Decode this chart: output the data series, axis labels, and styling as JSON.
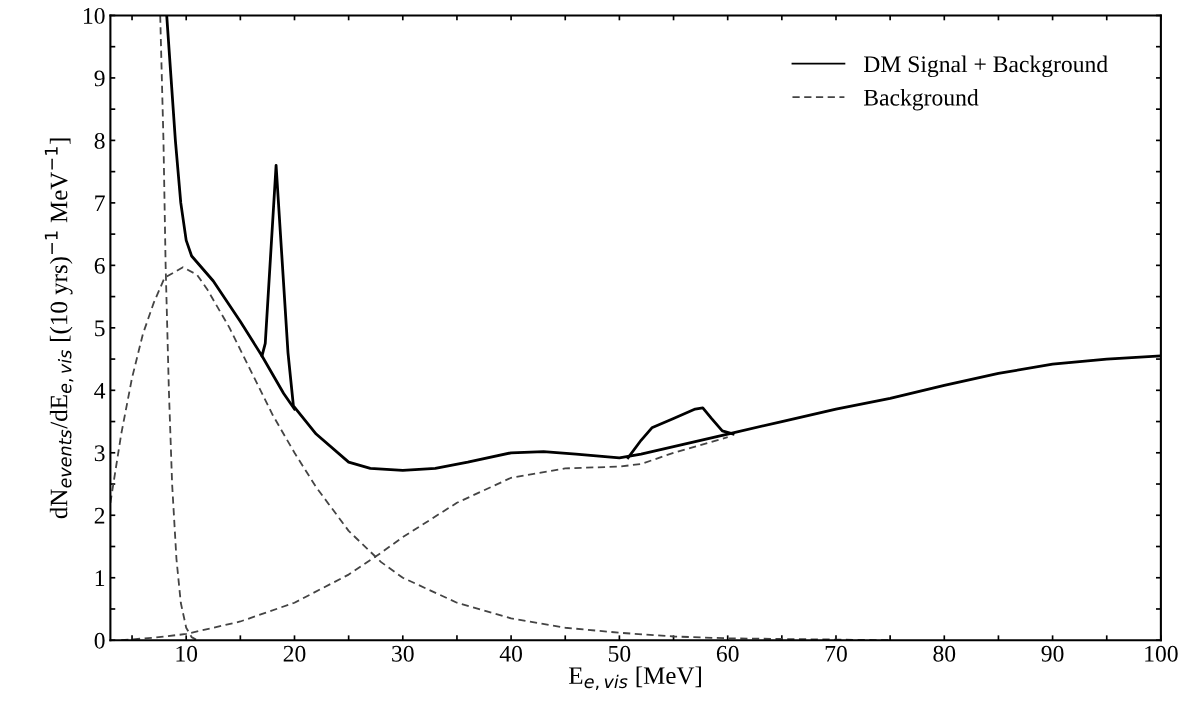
{
  "chart_data": {
    "type": "line",
    "xlabel": "E$_{e,vis}$ [MeV]",
    "ylabel": "dN$_{events}$/dE$_{e,vis}$ [(10 yrs)$^{−1}$ MeV$^{−1}$]",
    "xlim": [
      3,
      100
    ],
    "ylim": [
      0,
      10
    ],
    "xticks": [
      {
        "value": 5,
        "label": null
      },
      10,
      {
        "value": 15,
        "label": null
      },
      20,
      {
        "value": 25,
        "label": null
      },
      30,
      {
        "value": 35,
        "label": null
      },
      40,
      {
        "value": 45,
        "label": null
      },
      50,
      {
        "value": 55,
        "label": null
      },
      60,
      {
        "value": 65,
        "label": null
      },
      70,
      {
        "value": 75,
        "label": null
      },
      80,
      {
        "value": 85,
        "label": null
      },
      90,
      {
        "value": 95,
        "label": null
      },
      100
    ],
    "yticks": [
      0,
      {
        "value": 0.5,
        "label": null
      },
      1,
      {
        "value": 1.5,
        "label": null
      },
      2,
      {
        "value": 2.5,
        "label": null
      },
      3,
      {
        "value": 3.5,
        "label": null
      },
      4,
      {
        "value": 4.5,
        "label": null
      },
      5,
      {
        "value": 5.5,
        "label": null
      },
      6,
      {
        "value": 6.5,
        "label": null
      },
      7,
      {
        "value": 7.5,
        "label": null
      },
      8,
      {
        "value": 8.5,
        "label": null
      },
      9,
      {
        "value": 9.5,
        "label": null
      },
      10
    ],
    "grid": false,
    "legend": "top right",
    "marker": "none",
    "series": [
      {
        "name": "DM Signal + Background",
        "color": "#000000",
        "line_style": "solid",
        "x": [
          8.2,
          8.6,
          9.0,
          9.5,
          10.0,
          10.5,
          12.5,
          15,
          17,
          17.3,
          18.3,
          19.4,
          19.9,
          22,
          25,
          27,
          30,
          33,
          36,
          40,
          43,
          46,
          50,
          52,
          55,
          60,
          65,
          70,
          75,
          80,
          85,
          90,
          95,
          100
        ],
        "values": [
          10,
          9,
          8,
          7,
          6.4,
          6.15,
          5.75,
          5.1,
          4.55,
          4.75,
          7.6,
          4.6,
          3.75,
          3.3,
          2.85,
          2.75,
          2.72,
          2.75,
          2.85,
          3.0,
          3.02,
          2.98,
          2.92,
          2.98,
          3.1,
          3.3,
          3.5,
          3.7,
          3.87,
          4.08,
          4.27,
          4.42,
          4.5,
          4.55
        ]
      },
      {
        "color": "#000000",
        "line_style": "solid",
        "x": [
          17,
          18,
          19,
          20
        ],
        "values": [
          4.55,
          4.25,
          3.95,
          3.7
        ]
      },
      {
        "color": "#000000",
        "line_style": "solid",
        "x": [
          50.8,
          52,
          53,
          55,
          57,
          57.7,
          58.5,
          59.5,
          60.5
        ],
        "values": [
          2.92,
          3.2,
          3.4,
          3.55,
          3.7,
          3.72,
          3.55,
          3.35,
          3.3
        ]
      },
      {
        "name": "Background",
        "color": "#444444",
        "line_style": "dashed",
        "x": [
          3,
          4,
          5,
          6,
          7,
          8,
          9.7,
          11,
          12,
          14,
          16,
          18,
          20,
          22,
          25,
          28,
          30,
          35,
          40,
          45,
          50,
          55,
          60,
          70,
          75
        ],
        "values": [
          2.2,
          3.3,
          4.2,
          4.9,
          5.4,
          5.8,
          5.97,
          5.85,
          5.6,
          5.0,
          4.3,
          3.6,
          3.0,
          2.45,
          1.75,
          1.25,
          1.0,
          0.6,
          0.35,
          0.2,
          0.12,
          0.06,
          0.03,
          0.01,
          0
        ]
      },
      {
        "color": "#444444",
        "line_style": "dashed",
        "x": [
          7.6,
          7.9,
          8.1,
          8.4,
          8.7,
          9.1,
          9.5,
          10,
          10.5,
          11
        ],
        "values": [
          10,
          8,
          6,
          4,
          2.5,
          1.3,
          0.6,
          0.2,
          0.05,
          0
        ]
      },
      {
        "color": "#444444",
        "line_style": "dashed",
        "x": [
          4,
          7,
          10,
          15,
          20,
          25,
          28,
          30,
          35,
          40,
          45,
          50,
          52,
          55,
          60
        ],
        "values": [
          0,
          0.04,
          0.1,
          0.3,
          0.6,
          1.05,
          1.4,
          1.65,
          2.2,
          2.6,
          2.75,
          2.78,
          2.82,
          3.0,
          3.25
        ]
      }
    ]
  }
}
